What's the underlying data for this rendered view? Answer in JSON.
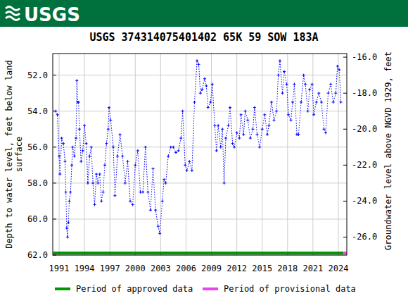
{
  "chart_data": {
    "type": "line",
    "header": "USGS",
    "title": "USGS 374314075401402 65K 59 SOW 183A",
    "y_label": [
      "Depth to water level, feet below land",
      "surface"
    ],
    "y2_label": "Groundwater level above NGVD 1929, feet",
    "xlim": [
      1990.25,
      2025.0
    ],
    "xticks": [
      1991,
      1994,
      1997,
      2000,
      2003,
      2006,
      2009,
      2012,
      2015,
      2018,
      2021,
      2024
    ],
    "ylim": [
      62.0,
      50.8
    ],
    "yticks": [
      {
        "value": 52,
        "label": "52.0"
      },
      {
        "value": 54,
        "label": "54.0"
      },
      {
        "value": 56,
        "label": "56.0"
      },
      {
        "value": 58,
        "label": "58.0"
      },
      {
        "value": 60,
        "label": "60.0"
      },
      {
        "value": 62,
        "label": "62.0"
      }
    ],
    "y2lim": [
      -27.0,
      -15.8
    ],
    "y2ticks": [
      {
        "value": -16,
        "label": "-16.0"
      },
      {
        "value": -18,
        "label": "-18.0"
      },
      {
        "value": -20,
        "label": "-20.0"
      },
      {
        "value": -22,
        "label": "-22.0"
      },
      {
        "value": -24,
        "label": "-24.0"
      },
      {
        "value": -26,
        "label": "-26.0"
      }
    ],
    "grid": true,
    "x": [
      1990.6,
      1990.8,
      1991.0,
      1991.1,
      1991.3,
      1991.5,
      1991.7,
      1991.8,
      1991.9,
      1992.0,
      1992.1,
      1992.2,
      1992.35,
      1992.5,
      1992.6,
      1992.8,
      1993.0,
      1993.1,
      1993.2,
      1993.3,
      1993.4,
      1993.6,
      1993.8,
      1994.0,
      1994.2,
      1994.4,
      1994.6,
      1994.8,
      1995.0,
      1995.2,
      1995.4,
      1995.6,
      1995.8,
      1996.0,
      1996.2,
      1996.4,
      1996.6,
      1996.8,
      1996.9,
      1997.1,
      1997.4,
      1997.6,
      1997.9,
      1998.2,
      1998.5,
      1998.8,
      1999.1,
      1999.4,
      1999.7,
      2000.0,
      2000.3,
      2000.6,
      2000.9,
      2001.2,
      2001.5,
      2001.8,
      2002.1,
      2002.4,
      2002.7,
      2002.9,
      2003.2,
      2003.4,
      2003.6,
      2003.9,
      2004.2,
      2004.5,
      2004.8,
      2005.1,
      2005.4,
      2005.6,
      2005.9,
      2006.1,
      2006.4,
      2006.7,
      2007.0,
      2007.3,
      2007.5,
      2007.7,
      2007.9,
      2008.2,
      2008.4,
      2008.6,
      2008.9,
      2009.1,
      2009.4,
      2009.6,
      2009.8,
      2010.1,
      2010.3,
      2010.5,
      2010.7,
      2011.0,
      2011.2,
      2011.5,
      2011.7,
      2012.0,
      2012.3,
      2012.5,
      2012.8,
      2013.0,
      2013.3,
      2013.6,
      2013.9,
      2014.1,
      2014.4,
      2014.7,
      2015.0,
      2015.3,
      2015.6,
      2015.8,
      2016.1,
      2016.4,
      2016.7,
      2016.9,
      2017.1,
      2017.4,
      2017.6,
      2017.9,
      2018.1,
      2018.4,
      2018.6,
      2018.8,
      2019.1,
      2019.3,
      2019.6,
      2019.9,
      2020.1,
      2020.4,
      2020.6,
      2020.9,
      2021.1,
      2021.4,
      2021.7,
      2022.0,
      2022.3,
      2022.5,
      2022.8,
      2023.1,
      2023.4,
      2023.7,
      2023.9,
      2024.1,
      2024.3
    ],
    "series": [
      {
        "color": "#0000ff",
        "marker": "plus",
        "line_style": "dotted",
        "values": [
          54.0,
          54.2,
          56.5,
          57.5,
          55.5,
          55.8,
          56.8,
          58.5,
          60.5,
          61.0,
          60.2,
          59.0,
          58.5,
          57.0,
          56.0,
          56.5,
          55.5,
          52.3,
          53.5,
          53.5,
          55.0,
          56.8,
          56.2,
          54.8,
          55.8,
          58.0,
          56.5,
          56.0,
          58.0,
          59.2,
          57.5,
          58.0,
          57.5,
          59.0,
          58.5,
          57.0,
          55.8,
          55.0,
          53.8,
          54.5,
          56.0,
          58.7,
          56.5,
          55.3,
          56.5,
          58.0,
          56.8,
          59.0,
          59.2,
          57.0,
          56.2,
          58.5,
          58.5,
          56.0,
          58.5,
          59.5,
          57.2,
          59.5,
          60.4,
          60.8,
          59.0,
          57.8,
          58.0,
          56.5,
          56.0,
          56.0,
          56.3,
          56.2,
          55.5,
          54.0,
          57.0,
          57.3,
          56.8,
          57.3,
          53.5,
          51.2,
          51.4,
          53.0,
          52.8,
          52.2,
          52.6,
          53.8,
          53.5,
          52.5,
          54.8,
          56.2,
          54.8,
          56.0,
          55.0,
          58.0,
          55.5,
          54.8,
          53.8,
          55.8,
          56.0,
          55.2,
          55.5,
          54.2,
          55.3,
          54.0,
          54.5,
          55.5,
          55.0,
          53.8,
          55.3,
          56.0,
          55.0,
          54.2,
          55.3,
          54.8,
          53.5,
          54.5,
          54.0,
          52.0,
          51.2,
          53.0,
          51.8,
          52.5,
          54.2,
          54.5,
          53.5,
          52.5,
          55.3,
          55.3,
          53.5,
          52.0,
          52.5,
          54.0,
          52.8,
          52.5,
          54.2,
          53.5,
          53.0,
          53.5,
          55.0,
          55.2,
          53.0,
          52.5,
          53.5,
          53.0,
          51.5,
          51.7,
          53.5
        ]
      }
    ],
    "periods": [
      {
        "name": "Period of approved data",
        "color": "#009900",
        "start": 1990.3,
        "end": 2024.6
      },
      {
        "name": "Period of provisional data",
        "color": "#ee44ee",
        "start": 2024.6,
        "end": 2025.0
      }
    ]
  }
}
